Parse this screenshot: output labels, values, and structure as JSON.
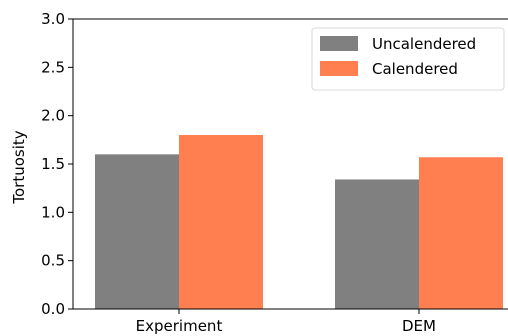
{
  "chart_data": {
    "type": "bar",
    "categories": [
      "Experiment",
      "DEM"
    ],
    "series": [
      {
        "name": "Uncalendered",
        "values": [
          1.6,
          1.34
        ],
        "color": "#808080"
      },
      {
        "name": "Calendered",
        "values": [
          1.8,
          1.57
        ],
        "color": "#ff7f50"
      }
    ],
    "xlabel": "",
    "ylabel": "Tortuosity",
    "ylim": [
      0,
      3.0
    ],
    "yticks": [
      "0.0",
      "0.5",
      "1.0",
      "1.5",
      "2.0",
      "2.5",
      "3.0"
    ],
    "grid": false,
    "legend_position": "top-right"
  }
}
